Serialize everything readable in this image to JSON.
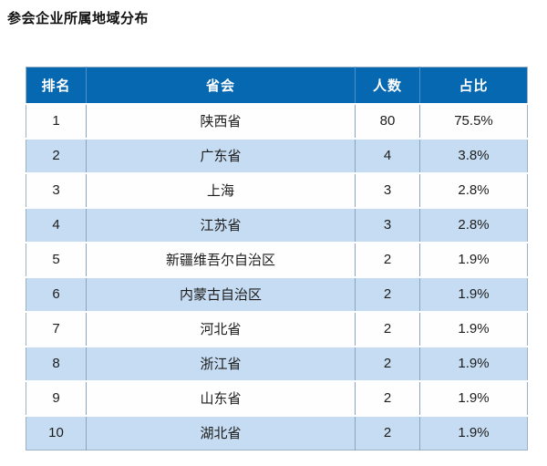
{
  "page": {
    "title": "参会企业所属地域分布"
  },
  "colors": {
    "header_bg": "#0768b2",
    "header_text": "#ffffff",
    "row_bg": "#fefefe",
    "row_alt_bg": "#c6dcf2",
    "cell_text": "#1c1c1c",
    "outer_border": "#9db1c6"
  },
  "table": {
    "columns": [
      "排名",
      "省会",
      "人数",
      "占比"
    ],
    "rows": [
      [
        "1",
        "陕西省",
        "80",
        "75.5%"
      ],
      [
        "2",
        "广东省",
        "4",
        "3.8%"
      ],
      [
        "3",
        "上海",
        "3",
        "2.8%"
      ],
      [
        "4",
        "江苏省",
        "3",
        "2.8%"
      ],
      [
        "5",
        "新疆维吾尔自治区",
        "2",
        "1.9%"
      ],
      [
        "6",
        "内蒙古自治区",
        "2",
        "1.9%"
      ],
      [
        "7",
        "河北省",
        "2",
        "1.9%"
      ],
      [
        "8",
        "浙江省",
        "2",
        "1.9%"
      ],
      [
        "9",
        "山东省",
        "2",
        "1.9%"
      ],
      [
        "10",
        "湖北省",
        "2",
        "1.9%"
      ]
    ]
  },
  "chart_data": {
    "type": "table",
    "title": "参会企业所属地域分布",
    "columns": [
      "排名",
      "省会",
      "人数",
      "占比"
    ],
    "rows": [
      {
        "rank": 1,
        "region": "陕西省",
        "count": 80,
        "share": "75.5%"
      },
      {
        "rank": 2,
        "region": "广东省",
        "count": 4,
        "share": "3.8%"
      },
      {
        "rank": 3,
        "region": "上海",
        "count": 3,
        "share": "2.8%"
      },
      {
        "rank": 4,
        "region": "江苏省",
        "count": 3,
        "share": "2.8%"
      },
      {
        "rank": 5,
        "region": "新疆维吾尔自治区",
        "count": 2,
        "share": "1.9%"
      },
      {
        "rank": 6,
        "region": "内蒙古自治区",
        "count": 2,
        "share": "1.9%"
      },
      {
        "rank": 7,
        "region": "河北省",
        "count": 2,
        "share": "1.9%"
      },
      {
        "rank": 8,
        "region": "浙江省",
        "count": 2,
        "share": "1.9%"
      },
      {
        "rank": 9,
        "region": "山东省",
        "count": 2,
        "share": "1.9%"
      },
      {
        "rank": 10,
        "region": "湖北省",
        "count": 2,
        "share": "1.9%"
      }
    ]
  }
}
